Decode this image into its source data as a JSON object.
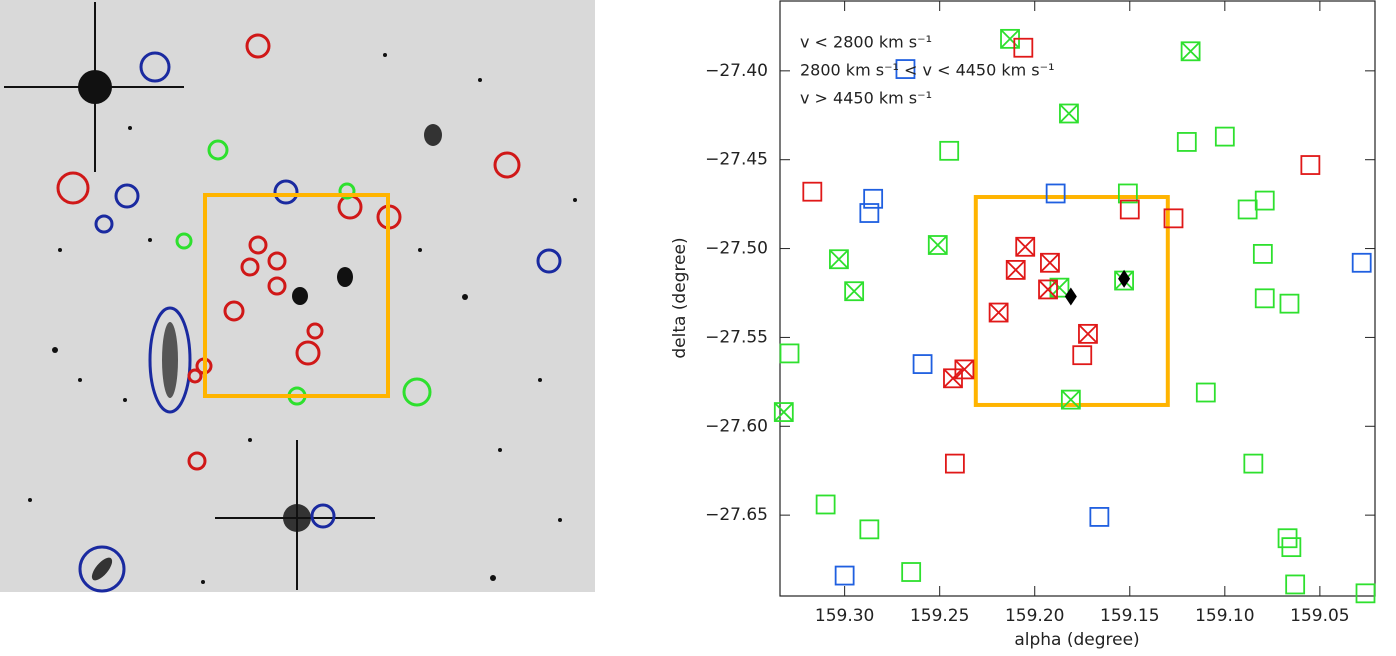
{
  "chart_data": {
    "type": "scatter",
    "xlabel": "alpha (degree)",
    "ylabel": "delta (degree)",
    "xlim": [
      159.334,
      159.021
    ],
    "ylim": [
      -27.6955,
      -27.3607
    ],
    "xticks": [
      {
        "value": 159.3,
        "label": "159.30"
      },
      {
        "value": 159.25,
        "label": "159.25"
      },
      {
        "value": 159.2,
        "label": "159.20"
      },
      {
        "value": 159.15,
        "label": "159.15"
      },
      {
        "value": 159.1,
        "label": "159.10"
      },
      {
        "value": 159.05,
        "label": "159.05"
      }
    ],
    "yticks": [
      {
        "value": -27.4,
        "label": "−27.40"
      },
      {
        "value": -27.45,
        "label": "−27.45"
      },
      {
        "value": -27.5,
        "label": "−27.50"
      },
      {
        "value": -27.55,
        "label": "−27.55"
      },
      {
        "value": -27.6,
        "label": "−27.60"
      },
      {
        "value": -27.65,
        "label": "−27.65"
      }
    ],
    "series": [
      {
        "name": "v < 2800 km s⁻¹",
        "color": "#1f5fe0",
        "x": [
          159.268,
          159.285,
          159.287,
          159.189,
          159.259,
          159.166,
          159.3,
          159.028
        ],
        "values": [
          -27.399,
          -27.472,
          -27.48,
          -27.469,
          -27.565,
          -27.651,
          -27.684,
          -27.508
        ],
        "crossed": [
          false,
          false,
          false,
          false,
          false,
          false,
          false,
          false
        ]
      },
      {
        "name": "2800 km s⁻¹ < v < 4450 km s⁻¹",
        "color": "#2ee02e",
        "x": [
          159.213,
          159.118,
          159.182,
          159.251,
          159.303,
          159.295,
          159.187,
          159.153,
          159.332,
          159.181,
          159.245,
          159.12,
          159.1,
          159.151,
          159.088,
          159.079,
          159.08,
          159.079,
          159.066,
          159.329,
          159.11,
          159.085,
          159.31,
          159.287,
          159.265,
          159.067,
          159.065,
          159.063,
          159.026
        ],
        "values": [
          -27.382,
          -27.389,
          -27.424,
          -27.498,
          -27.506,
          -27.524,
          -27.522,
          -27.518,
          -27.592,
          -27.585,
          -27.445,
          -27.44,
          -27.437,
          -27.469,
          -27.478,
          -27.473,
          -27.503,
          -27.528,
          -27.531,
          -27.559,
          -27.581,
          -27.621,
          -27.644,
          -27.658,
          -27.682,
          -27.663,
          -27.668,
          -27.689,
          -27.694
        ],
        "crossed": [
          true,
          true,
          true,
          true,
          true,
          true,
          true,
          true,
          true,
          true,
          false,
          false,
          false,
          false,
          false,
          false,
          false,
          false,
          false,
          false,
          false,
          false,
          false,
          false,
          false,
          false,
          false,
          false,
          false
        ]
      },
      {
        "name": "v > 4450 km s⁻¹",
        "color": "#e01818",
        "x": [
          159.317,
          159.206,
          159.15,
          159.127,
          159.055,
          159.175,
          159.242,
          159.205,
          159.21,
          159.192,
          159.193,
          159.219,
          159.172,
          159.237,
          159.243
        ],
        "values": [
          -27.468,
          -27.387,
          -27.478,
          -27.483,
          -27.453,
          -27.56,
          -27.621,
          -27.499,
          -27.512,
          -27.508,
          -27.523,
          -27.536,
          -27.548,
          -27.568,
          -27.573
        ],
        "crossed": [
          false,
          false,
          false,
          false,
          false,
          false,
          false,
          true,
          true,
          true,
          true,
          true,
          true,
          true,
          true
        ]
      }
    ],
    "markers": {
      "color": "#000000",
      "x": [
        159.181,
        159.153
      ],
      "values": [
        -27.527,
        -27.517
      ]
    },
    "box": {
      "color": "#ffb400",
      "x": [
        159.231,
        159.13
      ],
      "y": [
        -27.471,
        -27.588
      ]
    }
  }
}
